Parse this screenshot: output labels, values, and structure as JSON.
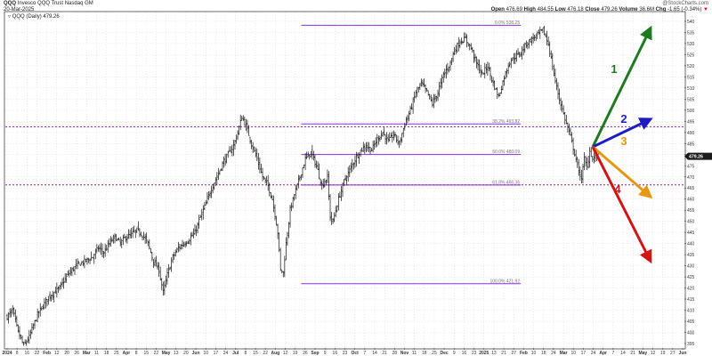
{
  "header": {
    "symbol": "QQQ",
    "name": "Invesco QQQ Trust",
    "exchange": "Nasdaq GM",
    "date": "20-Mar-2025",
    "legend": "QQQ (Daily) 479.26",
    "copyright": "@StockCharts.com",
    "open_label": "Open",
    "open": "476.69",
    "high_label": "High",
    "high": "484.55",
    "low_label": "Low",
    "low": "476.18",
    "close_label": "Close",
    "close": "479.26",
    "volume_label": "Volume",
    "volume": "36.6M",
    "chg_label": "Chg",
    "chg": "-1.65 (-0.34%)",
    "chg_arrow": "▼"
  },
  "chart_data": {
    "type": "ohlc",
    "ylim": [
      393,
      544
    ],
    "y_ticks": [
      395,
      400,
      405,
      410,
      415,
      420,
      425,
      430,
      435,
      440,
      445,
      450,
      455,
      460,
      465,
      470,
      475,
      480,
      485,
      490,
      495,
      500,
      505,
      510,
      515,
      520,
      525,
      530,
      535,
      540
    ],
    "last_price_label": "479.26",
    "last_price": 479.26,
    "x_ticks": [
      {
        "label": "2024",
        "month": true
      },
      {
        "label": "8",
        "month": false
      },
      {
        "label": "16",
        "month": false
      },
      {
        "label": "22",
        "month": false
      },
      {
        "label": "Feb",
        "month": true
      },
      {
        "label": "12",
        "month": false
      },
      {
        "label": "20",
        "month": false
      },
      {
        "label": "26",
        "month": false
      },
      {
        "label": "Mar",
        "month": true
      },
      {
        "label": "11",
        "month": false
      },
      {
        "label": "18",
        "month": false
      },
      {
        "label": "25",
        "month": false
      },
      {
        "label": "Apr",
        "month": true
      },
      {
        "label": "8",
        "month": false
      },
      {
        "label": "15",
        "month": false
      },
      {
        "label": "22",
        "month": false
      },
      {
        "label": "May",
        "month": true
      },
      {
        "label": "13",
        "month": false
      },
      {
        "label": "20",
        "month": false
      },
      {
        "label": "Jun",
        "month": true
      },
      {
        "label": "10",
        "month": false
      },
      {
        "label": "17",
        "month": false
      },
      {
        "label": "24",
        "month": false
      },
      {
        "label": "Jul",
        "month": true
      },
      {
        "label": "8",
        "month": false
      },
      {
        "label": "15",
        "month": false
      },
      {
        "label": "22",
        "month": false
      },
      {
        "label": "Aug",
        "month": true
      },
      {
        "label": "12",
        "month": false
      },
      {
        "label": "19",
        "month": false
      },
      {
        "label": "26",
        "month": false
      },
      {
        "label": "Sep",
        "month": true
      },
      {
        "label": "9",
        "month": false
      },
      {
        "label": "16",
        "month": false
      },
      {
        "label": "23",
        "month": false
      },
      {
        "label": "Oct",
        "month": true
      },
      {
        "label": "7",
        "month": false
      },
      {
        "label": "14",
        "month": false
      },
      {
        "label": "21",
        "month": false
      },
      {
        "label": "28",
        "month": false
      },
      {
        "label": "Nov",
        "month": true
      },
      {
        "label": "11",
        "month": false
      },
      {
        "label": "18",
        "month": false
      },
      {
        "label": "25",
        "month": false
      },
      {
        "label": "Dec",
        "month": true
      },
      {
        "label": "9",
        "month": false
      },
      {
        "label": "16",
        "month": false
      },
      {
        "label": "23",
        "month": false
      },
      {
        "label": "2025",
        "month": true
      },
      {
        "label": "13",
        "month": false
      },
      {
        "label": "21",
        "month": false
      },
      {
        "label": "27",
        "month": false
      },
      {
        "label": "Feb",
        "month": true
      },
      {
        "label": "10",
        "month": false
      },
      {
        "label": "18",
        "month": false
      },
      {
        "label": "24",
        "month": false
      },
      {
        "label": "Mar",
        "month": true
      },
      {
        "label": "10",
        "month": false
      },
      {
        "label": "17",
        "month": false
      },
      {
        "label": "24",
        "month": false
      },
      {
        "label": "Apr",
        "month": true
      },
      {
        "label": "7",
        "month": false
      },
      {
        "label": "14",
        "month": false
      },
      {
        "label": "21",
        "month": false
      },
      {
        "label": "May",
        "month": true
      },
      {
        "label": "12",
        "month": false
      },
      {
        "label": "19",
        "month": false
      },
      {
        "label": "27",
        "month": false
      },
      {
        "label": "Jun",
        "month": true
      }
    ],
    "anchors": [
      [
        0,
        407
      ],
      [
        4,
        410
      ],
      [
        8,
        400
      ],
      [
        12,
        394
      ],
      [
        16,
        398
      ],
      [
        22,
        408
      ],
      [
        30,
        416
      ],
      [
        38,
        420
      ],
      [
        44,
        426
      ],
      [
        50,
        430
      ],
      [
        56,
        432
      ],
      [
        62,
        434
      ],
      [
        66,
        438
      ],
      [
        70,
        436
      ],
      [
        74,
        440
      ],
      [
        78,
        443
      ],
      [
        82,
        440
      ],
      [
        86,
        443
      ],
      [
        90,
        444
      ],
      [
        94,
        446
      ],
      [
        98,
        444
      ],
      [
        102,
        440
      ],
      [
        106,
        432
      ],
      [
        110,
        428
      ],
      [
        113,
        418
      ],
      [
        116,
        426
      ],
      [
        120,
        434
      ],
      [
        124,
        438
      ],
      [
        128,
        440
      ],
      [
        132,
        442
      ],
      [
        136,
        445
      ],
      [
        140,
        452
      ],
      [
        144,
        458
      ],
      [
        148,
        465
      ],
      [
        152,
        470
      ],
      [
        156,
        476
      ],
      [
        160,
        480
      ],
      [
        164,
        484
      ],
      [
        167,
        490
      ],
      [
        170,
        497
      ],
      [
        173,
        493
      ],
      [
        177,
        485
      ],
      [
        181,
        478
      ],
      [
        185,
        470
      ],
      [
        189,
        466
      ],
      [
        192,
        460
      ],
      [
        194,
        453
      ],
      [
        196,
        445
      ],
      [
        198,
        428
      ],
      [
        200,
        427
      ],
      [
        202,
        440
      ],
      [
        205,
        455
      ],
      [
        208,
        462
      ],
      [
        212,
        470
      ],
      [
        216,
        478
      ],
      [
        220,
        481
      ],
      [
        224,
        475
      ],
      [
        228,
        466
      ],
      [
        232,
        470
      ],
      [
        234,
        452
      ],
      [
        236,
        450
      ],
      [
        240,
        460
      ],
      [
        244,
        468
      ],
      [
        248,
        473
      ],
      [
        252,
        478
      ],
      [
        256,
        482
      ],
      [
        260,
        484
      ],
      [
        264,
        482
      ],
      [
        268,
        487
      ],
      [
        272,
        490
      ],
      [
        276,
        486
      ],
      [
        280,
        489
      ],
      [
        284,
        485
      ],
      [
        288,
        494
      ],
      [
        292,
        500
      ],
      [
        296,
        508
      ],
      [
        300,
        512
      ],
      [
        304,
        508
      ],
      [
        308,
        503
      ],
      [
        312,
        508
      ],
      [
        316,
        516
      ],
      [
        320,
        520
      ],
      [
        324,
        527
      ],
      [
        328,
        531
      ],
      [
        332,
        532
      ],
      [
        336,
        528
      ],
      [
        340,
        521
      ],
      [
        344,
        516
      ],
      [
        348,
        520
      ],
      [
        352,
        512
      ],
      [
        356,
        506
      ],
      [
        360,
        515
      ],
      [
        364,
        522
      ],
      [
        368,
        524
      ],
      [
        372,
        526
      ],
      [
        376,
        530
      ],
      [
        380,
        532
      ],
      [
        384,
        534
      ],
      [
        388,
        536
      ],
      [
        392,
        530
      ],
      [
        396,
        516
      ],
      [
        400,
        505
      ],
      [
        404,
        496
      ],
      [
        408,
        488
      ],
      [
        412,
        478
      ],
      [
        414,
        472
      ],
      [
        416,
        470
      ],
      [
        418,
        478
      ],
      [
        420,
        474
      ],
      [
        422,
        482
      ],
      [
        424,
        478
      ],
      [
        426,
        480
      ],
      [
        428,
        479.26
      ]
    ],
    "fib_levels": [
      {
        "label": "0.0% 538.25",
        "price": 538.25
      },
      {
        "label": "38.2% 493.82",
        "price": 493.82
      },
      {
        "label": "50.0% 480.09",
        "price": 480.09
      },
      {
        "label": "61.8% 466.36",
        "price": 466.36
      },
      {
        "label": "100.0% 421.92",
        "price": 421.92
      }
    ],
    "dotted_levels": [
      492.6,
      466.4
    ],
    "scenarios": [
      {
        "label": "1",
        "color": "#1e7a1e",
        "end_price": 537
      },
      {
        "label": "2",
        "color": "#1c1cc4",
        "end_price": 496
      },
      {
        "label": "3",
        "color": "#e8960f",
        "end_price": 461
      },
      {
        "label": "4",
        "color": "#d41414",
        "end_price": 432
      }
    ],
    "colors": {
      "bars": "#111111",
      "fib": "#8a2be2",
      "fib_text": "#777777",
      "dotted": "#9b1fb3",
      "grid": "#d8d8d8",
      "price_tag": "#1a1a1a"
    }
  }
}
